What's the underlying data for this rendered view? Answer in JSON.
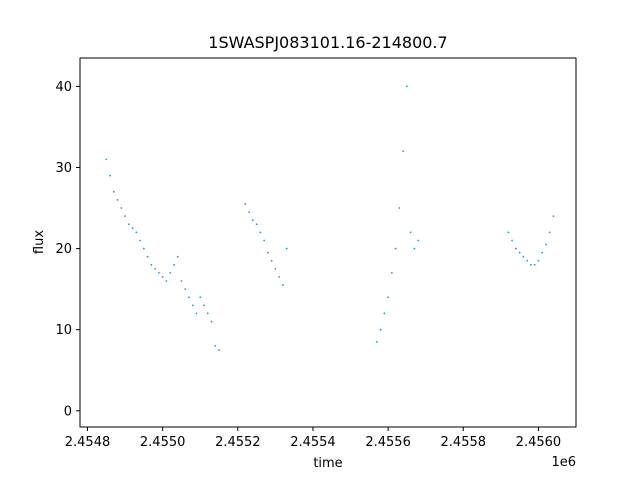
{
  "chart_data": {
    "type": "scatter",
    "title": "1SWASPJ083101.16-214800.7",
    "xlabel": "time",
    "ylabel": "flux",
    "x_offset_label": "1e6",
    "xlim": [
      2.45478,
      2.4561
    ],
    "ylim": [
      -2,
      43.5
    ],
    "x_ticks": [
      {
        "value": 2.4548,
        "label": "2.4548"
      },
      {
        "value": 2.455,
        "label": "2.4550"
      },
      {
        "value": 2.4552,
        "label": "2.4552"
      },
      {
        "value": 2.4554,
        "label": "2.4554"
      },
      {
        "value": 2.4556,
        "label": "2.4556"
      },
      {
        "value": 2.4558,
        "label": "2.4558"
      },
      {
        "value": 2.456,
        "label": "2.4560"
      }
    ],
    "y_ticks": [
      {
        "value": 0,
        "label": "0"
      },
      {
        "value": 10,
        "label": "10"
      },
      {
        "value": 20,
        "label": "20"
      },
      {
        "value": 30,
        "label": "30"
      },
      {
        "value": 40,
        "label": "40"
      }
    ],
    "grid": false,
    "marker_color": "#1f77b4",
    "series": [
      {
        "x": [
          2.45485,
          2.45486,
          2.45487,
          2.45488,
          2.45489,
          2.4549,
          2.45491,
          2.45492,
          2.45493,
          2.45494,
          2.45495,
          2.45496,
          2.45497,
          2.45498,
          2.45499,
          2.455,
          2.45501,
          2.45502,
          2.45503,
          2.45504,
          2.45505,
          2.45506,
          2.45507,
          2.45508,
          2.45509,
          2.4551,
          2.45511,
          2.45512,
          2.45513,
          2.45514,
          2.45515
        ],
        "y": [
          31,
          29,
          27,
          26,
          25,
          24,
          23,
          22.5,
          22,
          21,
          20,
          19,
          18,
          17.5,
          17,
          16.5,
          16,
          17,
          18,
          19,
          16,
          15,
          14,
          13,
          12,
          14,
          13,
          12,
          11,
          8,
          7.5
        ]
      },
      {
        "x": [
          2.45522,
          2.45523,
          2.45524,
          2.45525,
          2.45526,
          2.45527,
          2.45528,
          2.45529,
          2.4553,
          2.45531,
          2.45532,
          2.45533
        ],
        "y": [
          25.5,
          24.5,
          23.5,
          23,
          22,
          21,
          19.5,
          18.5,
          17.5,
          16.5,
          15.5,
          20
        ]
      },
      {
        "x": [
          2.45557,
          2.45558,
          2.45559,
          2.4556,
          2.45561,
          2.45562,
          2.45563,
          2.45564,
          2.45565,
          2.45566,
          2.45567,
          2.45568
        ],
        "y": [
          8.5,
          10,
          12,
          14,
          17,
          20,
          25,
          32,
          40,
          22,
          20,
          21
        ]
      },
      {
        "x": [
          2.45592,
          2.45593,
          2.45594,
          2.45595,
          2.45596,
          2.45597,
          2.45598,
          2.45599,
          2.456,
          2.45601,
          2.45602,
          2.45603,
          2.45604
        ],
        "y": [
          22,
          21,
          20,
          19.5,
          19,
          18.5,
          18,
          18,
          18.5,
          19.5,
          20.5,
          22,
          24
        ]
      }
    ]
  }
}
